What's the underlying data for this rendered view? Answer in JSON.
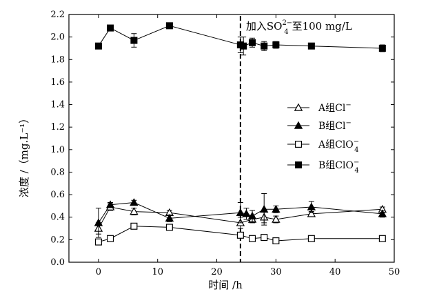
{
  "chart_data": {
    "type": "line",
    "xlabel": "时间 /h",
    "ylabel": "浓度 /（mg.L⁻¹）",
    "xlim": [
      -5,
      50
    ],
    "ylim": [
      0,
      2.2
    ],
    "xticks": [
      0,
      10,
      20,
      30,
      40,
      50
    ],
    "yticks": [
      0.0,
      0.2,
      0.4,
      0.6,
      0.8,
      1.0,
      1.2,
      1.4,
      1.6,
      1.8,
      2.0,
      2.2
    ],
    "legend_position": "right",
    "annotation": {
      "x": 24,
      "label_main": "加入SO",
      "label_sub": "4",
      "label_sup": "2−",
      "label_tail": "至100 mg/L"
    },
    "series": [
      {
        "name_main": "A组Cl",
        "name_sup": "−",
        "name_sub": "",
        "marker": "triangle-open",
        "x": [
          0,
          2,
          6,
          12,
          24,
          26,
          28,
          30,
          36,
          48
        ],
        "y": [
          0.3,
          0.49,
          0.45,
          0.44,
          0.35,
          0.38,
          0.4,
          0.38,
          0.43,
          0.47
        ],
        "err": [
          0.05,
          0.03,
          0.03,
          0.02,
          0.05,
          0.03,
          0.05,
          0.03,
          0.02,
          0.02
        ]
      },
      {
        "name_main": "B组Cl",
        "name_sup": "−",
        "name_sub": "",
        "marker": "triangle-filled",
        "x": [
          0,
          2,
          6,
          12,
          24,
          25,
          26,
          28,
          30,
          36,
          48
        ],
        "y": [
          0.35,
          0.51,
          0.53,
          0.39,
          0.44,
          0.43,
          0.41,
          0.47,
          0.47,
          0.49,
          0.43
        ],
        "err": [
          0.13,
          0.02,
          0.02,
          0.03,
          0.09,
          0.05,
          0.05,
          0.14,
          0.03,
          0.05,
          0.03
        ]
      },
      {
        "name_main": "A组ClO",
        "name_sup": "−",
        "name_sub": "4",
        "marker": "square-open",
        "x": [
          0,
          2,
          6,
          12,
          24,
          26,
          28,
          30,
          36,
          48
        ],
        "y": [
          0.18,
          0.21,
          0.32,
          0.31,
          0.24,
          0.21,
          0.22,
          0.19,
          0.21,
          0.21
        ],
        "err": [
          0.02,
          0.01,
          0.01,
          0.01,
          0.02,
          0.01,
          0.01,
          0.01,
          0.01,
          0.01
        ]
      },
      {
        "name_main": "B组ClO",
        "name_sup": "−",
        "name_sub": "4",
        "marker": "square-filled",
        "x": [
          0,
          2,
          6,
          12,
          24,
          24.5,
          26,
          28,
          30,
          36,
          48
        ],
        "y": [
          1.92,
          2.08,
          1.97,
          2.1,
          1.93,
          1.92,
          1.95,
          1.92,
          1.93,
          1.92,
          1.9
        ],
        "err": [
          0.0,
          0.0,
          0.06,
          0.0,
          0.07,
          0.08,
          0.04,
          0.04,
          0.03,
          0.0,
          0.03
        ]
      }
    ]
  }
}
